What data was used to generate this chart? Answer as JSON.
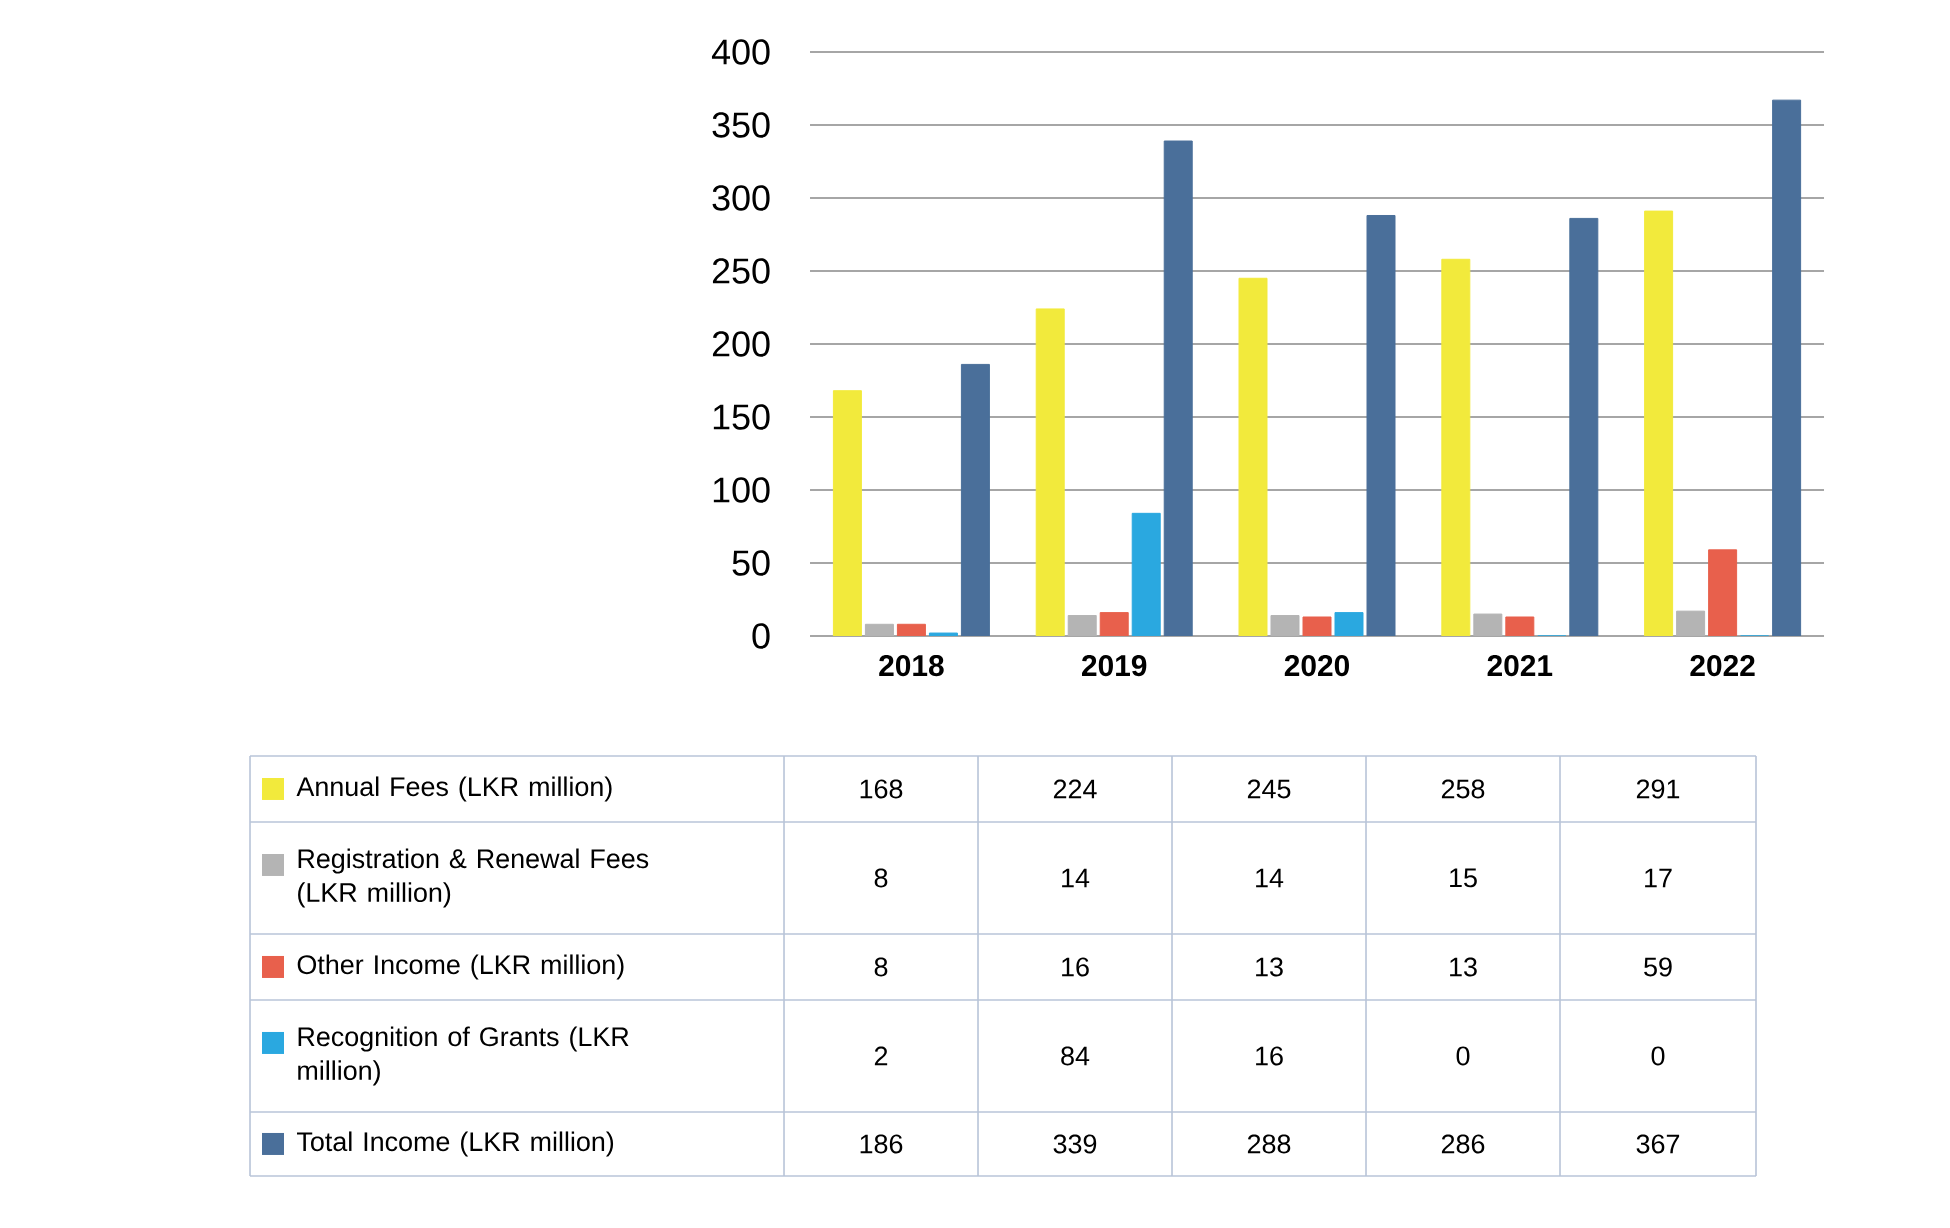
{
  "chart_data": {
    "type": "bar",
    "categories": [
      "2018",
      "2019",
      "2020",
      "2021",
      "2022"
    ],
    "series": [
      {
        "name": "Annual Fees (LKR million)",
        "color": "#f2ea3c",
        "values": [
          168,
          224,
          245,
          258,
          291
        ]
      },
      {
        "name": "Registration & Renewal Fees (LKR million)",
        "color": "#b4b4b4",
        "values": [
          8,
          14,
          14,
          15,
          17
        ]
      },
      {
        "name": "Other Income (LKR million)",
        "color": "#e8604c",
        "values": [
          8,
          16,
          13,
          13,
          59
        ]
      },
      {
        "name": "Recognition of Grants (LKR million)",
        "color": "#2aa8e0",
        "values": [
          2,
          84,
          16,
          0,
          0
        ]
      },
      {
        "name": "Total Income (LKR million)",
        "color": "#4a6f9a",
        "values": [
          186,
          339,
          288,
          286,
          367
        ]
      }
    ],
    "ylim": [
      0,
      400
    ],
    "yticks": [
      0,
      50,
      100,
      150,
      200,
      250,
      300,
      350,
      400
    ],
    "grid": "y",
    "legend": "bottom",
    "data_labels": true
  }
}
